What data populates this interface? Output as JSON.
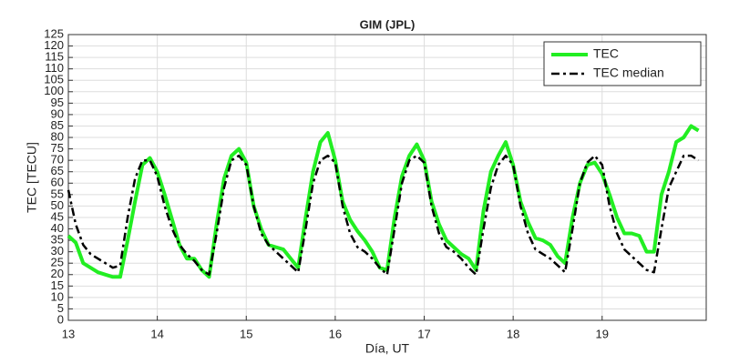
{
  "chart_data": {
    "type": "line",
    "title": "GIM (JPL)",
    "x_label": "Día, UT",
    "y_label": "TEC [TECU]",
    "x": [
      13,
      13.083,
      13.167,
      13.25,
      13.333,
      13.417,
      13.5,
      13.583,
      13.667,
      13.75,
      13.833,
      13.917,
      14,
      14.083,
      14.167,
      14.25,
      14.333,
      14.417,
      14.5,
      14.583,
      14.667,
      14.75,
      14.833,
      14.917,
      15,
      15.083,
      15.167,
      15.25,
      15.333,
      15.417,
      15.5,
      15.583,
      15.667,
      15.75,
      15.833,
      15.917,
      16,
      16.083,
      16.167,
      16.25,
      16.333,
      16.417,
      16.5,
      16.583,
      16.667,
      16.75,
      16.833,
      16.917,
      17,
      17.083,
      17.167,
      17.25,
      17.333,
      17.417,
      17.5,
      17.583,
      17.667,
      17.75,
      17.833,
      17.917,
      18,
      18.083,
      18.167,
      18.25,
      18.333,
      18.417,
      18.5,
      18.583,
      18.667,
      18.75,
      18.833,
      18.917,
      19,
      19.083,
      19.167,
      19.25,
      19.333,
      19.417,
      19.5,
      19.583,
      19.667,
      19.75,
      19.833,
      19.917,
      20,
      20.083
    ],
    "series": [
      {
        "name": "TEC",
        "color": "#22ee22",
        "line_width": 4,
        "dashed": false,
        "values": [
          37,
          34,
          25,
          23,
          21,
          20,
          19,
          19,
          35,
          52,
          68,
          71,
          65,
          55,
          44,
          33,
          27,
          27,
          22,
          19,
          42,
          62,
          72,
          75,
          69,
          50,
          40,
          33,
          32,
          31,
          27,
          23,
          45,
          65,
          78,
          82,
          70,
          52,
          44,
          39,
          35,
          30,
          23,
          22,
          45,
          63,
          72,
          77,
          70,
          52,
          42,
          35,
          32,
          29,
          27,
          22,
          48,
          65,
          72,
          78,
          68,
          52,
          43,
          36,
          35,
          33,
          28,
          25,
          45,
          60,
          68,
          69,
          64,
          55,
          45,
          38,
          38,
          37,
          30,
          30,
          55,
          65,
          78,
          80,
          85,
          83
        ]
      },
      {
        "name": "TEC median",
        "color": "#000000",
        "line_width": 2.5,
        "dashed": true,
        "values": [
          57,
          42,
          33,
          29,
          27,
          25,
          23,
          24,
          45,
          62,
          70,
          70,
          63,
          50,
          40,
          33,
          29,
          26,
          22,
          20,
          38,
          58,
          70,
          72,
          68,
          50,
          38,
          33,
          30,
          27,
          24,
          21,
          40,
          60,
          70,
          72,
          69,
          50,
          38,
          32,
          30,
          27,
          23,
          20,
          40,
          60,
          70,
          72,
          69,
          50,
          38,
          32,
          30,
          27,
          23,
          20,
          40,
          58,
          68,
          72,
          68,
          50,
          38,
          31,
          29,
          27,
          24,
          21,
          40,
          60,
          69,
          72,
          68,
          50,
          38,
          31,
          28,
          25,
          22,
          21,
          40,
          58,
          65,
          72,
          72,
          70
        ]
      }
    ],
    "xlim": [
      13,
      20.17
    ],
    "xticks": [
      13,
      14,
      15,
      16,
      17,
      18,
      19
    ],
    "ylim": [
      0,
      125
    ],
    "yticks": [
      0,
      5,
      10,
      15,
      20,
      25,
      30,
      35,
      40,
      45,
      50,
      55,
      60,
      65,
      70,
      75,
      80,
      85,
      90,
      95,
      100,
      105,
      110,
      115,
      120,
      125
    ],
    "grid": true,
    "legend": "upper right"
  }
}
